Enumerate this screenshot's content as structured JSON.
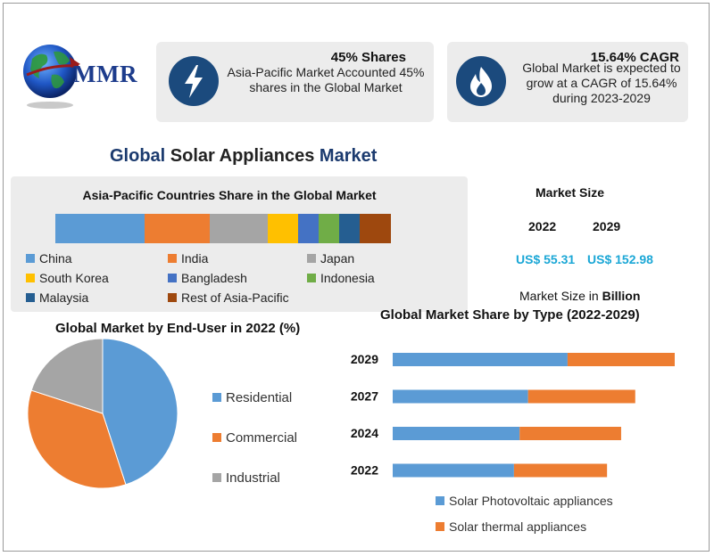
{
  "logo": {
    "brand": "MMR"
  },
  "stats": [
    {
      "head": "45% Shares",
      "text": "Asia-Pacific Market Accounted 45% shares in the Global Market",
      "icon": "lightning-icon"
    },
    {
      "head": "15.64% CAGR",
      "text": "Global Market is expected to grow at a CAGR of 15.64% during 2023-2029",
      "icon": "flame-icon"
    }
  ],
  "main_title": {
    "part1": "Global",
    "part2": "Solar Appliances",
    "part3": "Market"
  },
  "market_size": {
    "title": "Market Size",
    "years": [
      "2022",
      "2029"
    ],
    "values": [
      "US$ 55.31",
      "US$ 152.98"
    ],
    "unit_prefix": "Market Size in",
    "unit": "Billion"
  },
  "colors": {
    "blue": "#5b9bd5",
    "orange": "#ed7d31",
    "gray": "#a5a5a5",
    "yellow": "#ffc000",
    "royal": "#4472c4",
    "green": "#70ad47",
    "navy": "#255e91",
    "brown": "#9e480e",
    "accent_text": "#1ba7d6"
  },
  "chart_data": [
    {
      "type": "bar",
      "title": "Asia-Pacific Countries Share in the Global Market",
      "orientation": "stacked-horizontal-100",
      "categories": [
        "China",
        "India",
        "Japan",
        "South Korea",
        "Bangladesh",
        "Indonesia",
        "Malaysia",
        "Rest of Asia-Pacific"
      ],
      "values": [
        26,
        19,
        17,
        9,
        6,
        6,
        6,
        9
      ],
      "colors": [
        "#5b9bd5",
        "#ed7d31",
        "#a5a5a5",
        "#ffc000",
        "#4472c4",
        "#70ad47",
        "#255e91",
        "#9e480e"
      ],
      "legend": "bottom"
    },
    {
      "type": "pie",
      "title": "Global Market by End-User in 2022 (%)",
      "categories": [
        "Residential",
        "Commercial",
        "Industrial"
      ],
      "values": [
        45,
        35,
        20
      ],
      "colors": [
        "#5b9bd5",
        "#ed7d31",
        "#a5a5a5"
      ],
      "legend": "right"
    },
    {
      "type": "bar",
      "title": "Global Market Share by Type (2022-2029)",
      "orientation": "stacked-horizontal",
      "categories": [
        "2029",
        "2027",
        "2024",
        "2022"
      ],
      "series": [
        {
          "name": "Solar Photovoltaic appliances",
          "values": [
            62,
            48,
            45,
            43
          ],
          "color": "#5b9bd5"
        },
        {
          "name": "Solar thermal appliances",
          "values": [
            38,
            38,
            36,
            33
          ],
          "color": "#ed7d31"
        }
      ],
      "legend": "bottom"
    }
  ]
}
